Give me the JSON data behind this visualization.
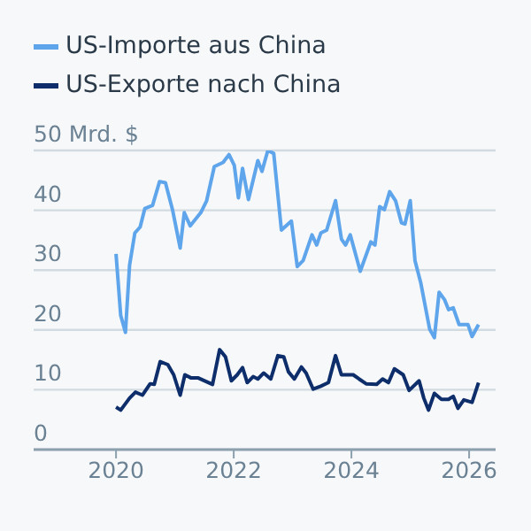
{
  "chart_data": {
    "type": "line",
    "legend": "top left",
    "grid": "y",
    "xlim": [
      2018.6,
      2026.45
    ],
    "xticks": [
      2020,
      2022,
      2024,
      2026
    ],
    "ylim": [
      0,
      50
    ],
    "yticks": [
      0,
      10,
      20,
      30,
      40,
      {
        "value": 50,
        "label": "50 Mrd. $"
      }
    ],
    "series": [
      {
        "name": "US-Importe aus China",
        "color": "#5ea5ec",
        "x": [
          2020.0,
          2020.08,
          2020.16,
          2020.23,
          2020.32,
          2020.41,
          2020.49,
          2020.62,
          2020.74,
          2020.84,
          2020.96,
          2021.09,
          2021.16,
          2021.26,
          2021.44,
          2021.54,
          2021.67,
          2021.82,
          2021.92,
          2022.01,
          2022.08,
          2022.15,
          2022.25,
          2022.41,
          2022.48,
          2022.58,
          2022.68,
          2022.81,
          2022.98,
          2023.08,
          2023.18,
          2023.33,
          2023.41,
          2023.48,
          2023.58,
          2023.73,
          2023.83,
          2023.9,
          2023.98,
          2024.15,
          2024.33,
          2024.4,
          2024.48,
          2024.56,
          2024.65,
          2024.75,
          2024.85,
          2024.91,
          2025.0,
          2025.08,
          2025.18,
          2025.33,
          2025.41,
          2025.49,
          2025.58,
          2025.65,
          2025.73,
          2025.83,
          2025.98,
          2026.05,
          2026.16
        ],
        "values": [
          32.7,
          22.4,
          19.6,
          30.8,
          36.2,
          37.2,
          40.3,
          40.8,
          44.8,
          44.6,
          40.1,
          33.7,
          39.6,
          37.4,
          39.6,
          41.6,
          47.3,
          48.0,
          49.3,
          47.5,
          42.1,
          47.0,
          41.8,
          48.3,
          46.5,
          50.0,
          49.5,
          36.7,
          38.2,
          30.6,
          31.6,
          35.9,
          34.2,
          36.2,
          36.7,
          41.6,
          35.2,
          34.2,
          35.9,
          29.8,
          34.7,
          34.2,
          40.6,
          40.1,
          43.1,
          41.6,
          37.9,
          37.7,
          41.6,
          31.6,
          27.8,
          20.1,
          18.7,
          26.3,
          25.1,
          23.4,
          23.7,
          20.9,
          20.9,
          18.9,
          20.9
        ]
      },
      {
        "name": "US-Exporte nach China",
        "color": "#0d2d6b",
        "x": [
          2020.0,
          2020.08,
          2020.23,
          2020.33,
          2020.45,
          2020.58,
          2020.65,
          2020.75,
          2020.88,
          2020.98,
          2021.09,
          2021.17,
          2021.27,
          2021.39,
          2021.64,
          2021.76,
          2021.86,
          2021.96,
          2022.06,
          2022.15,
          2022.23,
          2022.33,
          2022.41,
          2022.51,
          2022.63,
          2022.75,
          2022.85,
          2022.93,
          2023.03,
          2023.15,
          2023.23,
          2023.35,
          2023.48,
          2023.61,
          2023.73,
          2023.83,
          2024.03,
          2024.13,
          2024.25,
          2024.43,
          2024.53,
          2024.63,
          2024.73,
          2024.88,
          2024.98,
          2025.15,
          2025.23,
          2025.31,
          2025.41,
          2025.53,
          2025.65,
          2025.73,
          2025.81,
          2025.91,
          2026.05,
          2026.16
        ],
        "values": [
          7.1,
          6.6,
          8.6,
          9.6,
          9.1,
          11.0,
          10.9,
          14.7,
          14.2,
          12.5,
          9.1,
          12.5,
          12.0,
          12.0,
          10.9,
          16.7,
          15.5,
          11.5,
          12.5,
          13.7,
          11.2,
          12.2,
          11.8,
          12.8,
          11.8,
          15.7,
          15.5,
          13.0,
          11.8,
          13.8,
          12.8,
          10.1,
          10.6,
          11.2,
          15.7,
          12.5,
          12.5,
          11.8,
          11.0,
          10.9,
          11.8,
          11.2,
          13.5,
          12.5,
          9.9,
          11.5,
          8.6,
          6.6,
          9.4,
          8.4,
          8.4,
          8.9,
          6.9,
          8.3,
          7.9,
          11.2
        ]
      }
    ]
  }
}
